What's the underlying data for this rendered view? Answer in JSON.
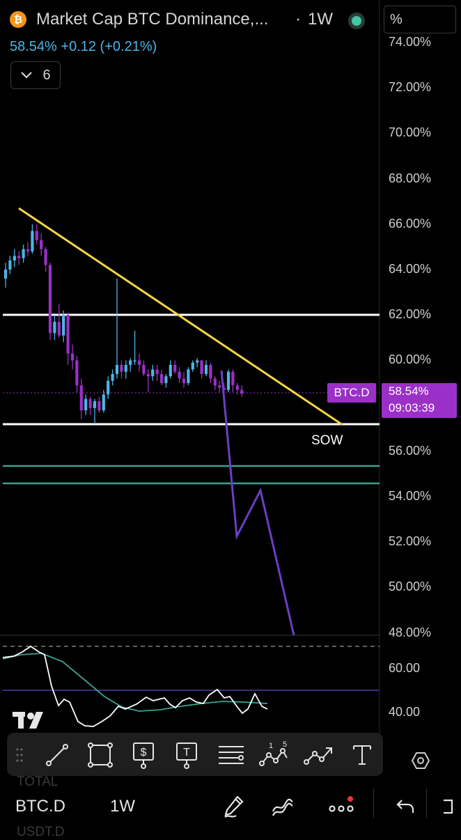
{
  "header": {
    "title": "Market Cap BTC Dominance,...",
    "separator": "·",
    "interval": "1W",
    "price_line": "58.54%  +0.12  (+0.21%)",
    "indicators_count": "6",
    "scale_mode": "%"
  },
  "price_axis": {
    "labels": [
      "74.00%",
      "72.00%",
      "70.00%",
      "68.00%",
      "66.00%",
      "64.00%",
      "62.00%",
      "60.00%",
      "58.00%",
      "56.00%",
      "54.00%",
      "52.00%",
      "50.00%",
      "48.00%"
    ]
  },
  "annotations": {
    "symbol_tag": "BTC.D",
    "current_value": "58.54%",
    "countdown": "09:03:39",
    "sow_label": "SOW"
  },
  "rsi_axis": {
    "labels": [
      "60.00",
      "40.00"
    ]
  },
  "colors": {
    "up_candle": "#4cb5e6",
    "down_candle": "#9b30c8",
    "trendline": "#f5d547",
    "projection": "#6b3fc4",
    "support": "#ffffff",
    "teal_levels": "#3aa394",
    "rsi_line": "#ffffff",
    "rsi_ma": "#3aa394"
  },
  "toolbar": {
    "tools": [
      "drag-handle-icon",
      "trendline-icon",
      "rectangle-icon",
      "price-label-icon",
      "text-note-icon",
      "horizontal-lines-icon",
      "pattern-icon",
      "path-icon",
      "text-icon"
    ]
  },
  "bottom_bar": {
    "ghost_top": "TOTAL",
    "symbol": "BTC.D",
    "timeframe": "1W",
    "ghost_bottom": "USDT.D"
  }
}
